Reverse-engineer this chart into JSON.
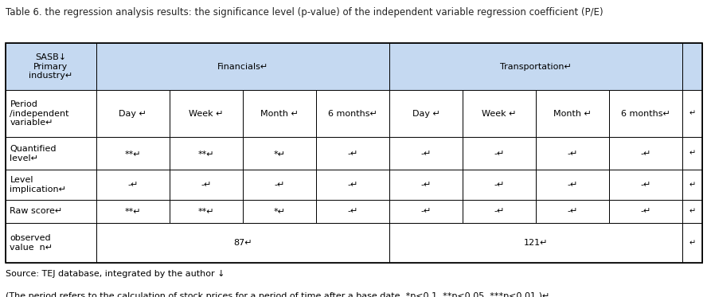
{
  "title": "Table 6. the regression analysis results: the significance level (p-value) of the independent variable regression coefficient (P/E)",
  "header_bg": "#c5d9f1",
  "white_bg": "#ffffff",
  "border_color": "#000000",
  "title_fontsize": 8.5,
  "cell_fontsize": 8.0,
  "note_fontsize": 8.0,
  "col0_label": "SASB↓\nPrimary\nindustry↵",
  "financials_label": "Financials↵",
  "transportation_label": "Transportation↵",
  "period_label": "Period\n/independent\nvariable↵",
  "sub_cols": [
    "Day ↵",
    "Week ↵",
    "Month ↵",
    "6 months↵"
  ],
  "extra_col": "↵",
  "row_labels": [
    "Quantified\nlevel↵",
    "Level\nimplication↵",
    "Raw score↵",
    "observed\nvalue  n↵"
  ],
  "financials_data": [
    [
      "**↵",
      "**↵",
      "*↵",
      "-↵"
    ],
    [
      "-↵",
      "-↵",
      "-↵",
      "-↵"
    ],
    [
      "**↵",
      "**↵",
      "*↵",
      "-↵"
    ],
    [
      "87↵",
      "",
      "",
      ""
    ]
  ],
  "transportation_data": [
    [
      "-↵",
      "-↵",
      "-↵",
      "-↵"
    ],
    [
      "-↵",
      "-↵",
      "-↵",
      "-↵"
    ],
    [
      "-↵",
      "-↵",
      "-↵",
      "-↵"
    ],
    [
      "121↵",
      "",
      "",
      ""
    ]
  ],
  "right_arrows": [
    "↵",
    "↵",
    "↵",
    "↵",
    "↵",
    "↵"
  ],
  "source_note": "Source: TEJ database, integrated by the author ↓",
  "period_note": "(The period refers to the calculation of stock prices for a period of time after a base date. *p<0.1, **p<0.05, ***p<0.01.)↵"
}
